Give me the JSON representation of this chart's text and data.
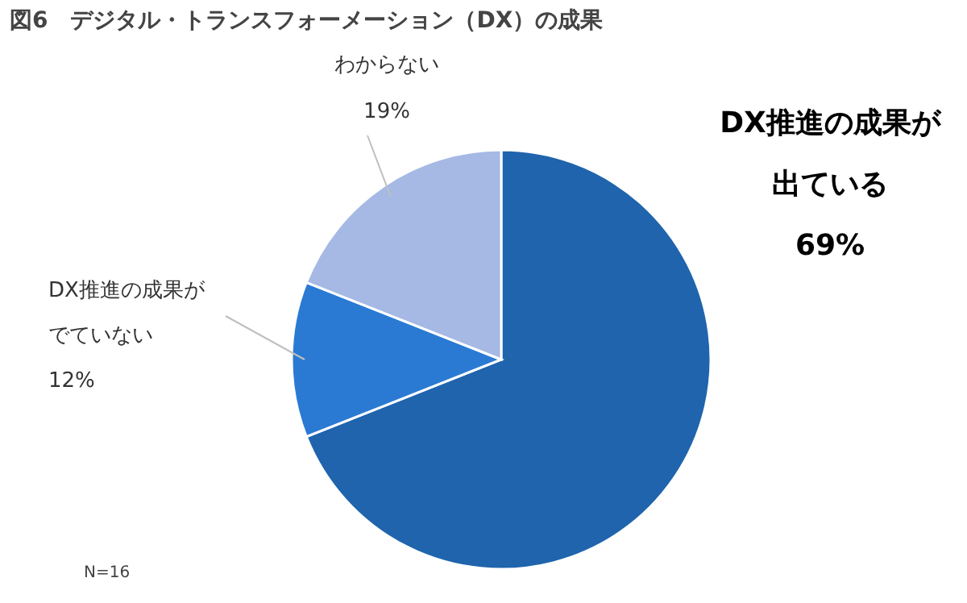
{
  "chart_data": {
    "type": "pie",
    "title": "図6　デジタル・トランスフォーメーション（DX）の成果",
    "categories": [
      "DX推進の成果が出ている",
      "DX推進の成果がでていない",
      "わからない"
    ],
    "values": [
      69,
      12,
      19
    ],
    "colors": [
      "#1f64ad",
      "#2a7ad4",
      "#a5b9e4"
    ],
    "value_labels": [
      "69%",
      "12%",
      "19%"
    ],
    "annotations": [
      "N=16"
    ]
  }
}
